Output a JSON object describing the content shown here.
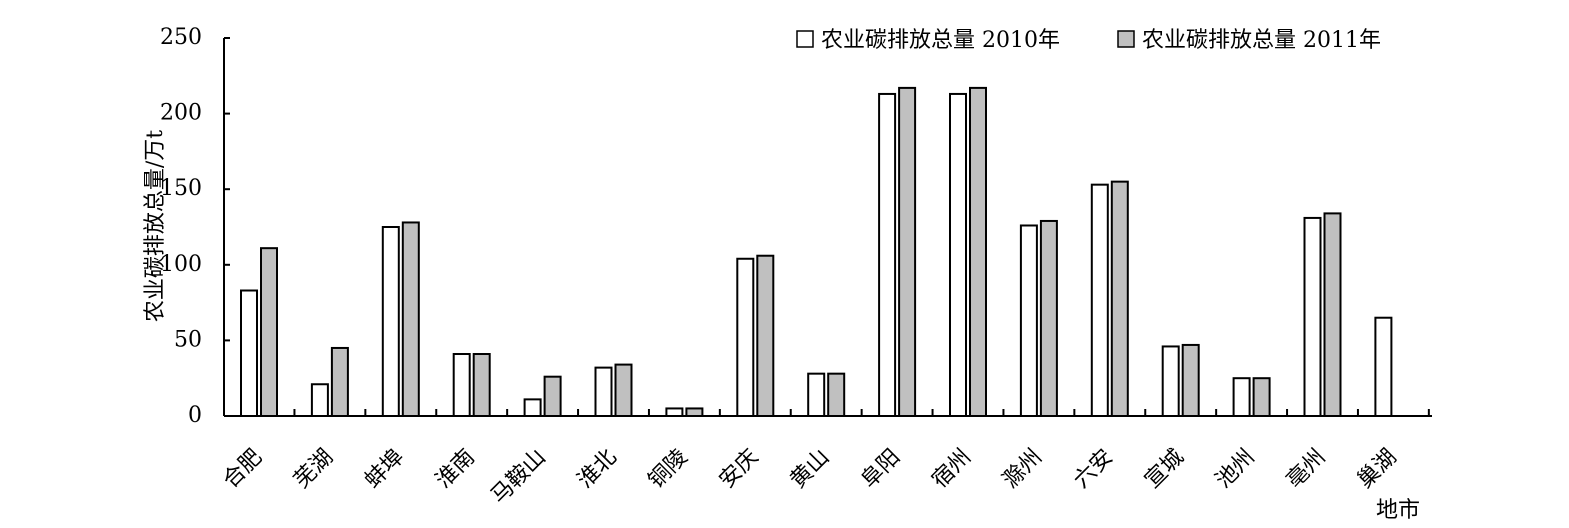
{
  "chart_data": {
    "type": "bar",
    "ylabel": "农业碳排放总量/万t",
    "xlabel": "地市",
    "ylim": [
      0,
      250
    ],
    "yticks": [
      0,
      50,
      100,
      150,
      200,
      250
    ],
    "legend_position": "top-right",
    "grid": false,
    "categories": [
      "合肥",
      "芜湖",
      "蚌埠",
      "淮南",
      "马鞍山",
      "淮北",
      "铜陵",
      "安庆",
      "黄山",
      "阜阳",
      "宿州",
      "滁州",
      "六安",
      "宣城",
      "池州",
      "亳州",
      "巢湖"
    ],
    "series": [
      {
        "name": "农业碳排放总量 2010年",
        "color": "#ffffff",
        "values": [
          83,
          21,
          125,
          41,
          11,
          32,
          5,
          104,
          28,
          213,
          213,
          126,
          153,
          46,
          25,
          131,
          65
        ]
      },
      {
        "name": "农业碳排放总量 2011年",
        "color": "#c0c0c0",
        "values": [
          111,
          45,
          128,
          41,
          26,
          34,
          5,
          106,
          28,
          217,
          217,
          129,
          155,
          47,
          25,
          134,
          null
        ]
      }
    ]
  }
}
